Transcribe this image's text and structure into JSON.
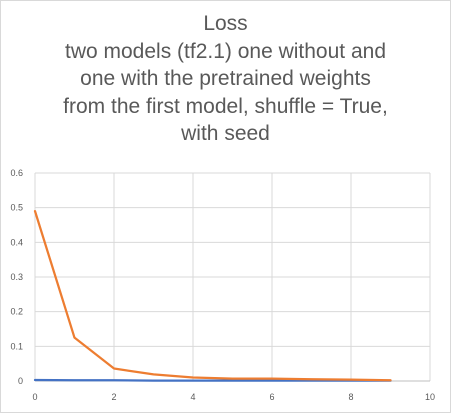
{
  "chart_data": {
    "type": "line",
    "title_lines": [
      "Loss",
      "two models (tf2.1) one without and",
      "one with the pretrained weights",
      "from the first model, shuffle = True,",
      "with seed"
    ],
    "xlabel": "",
    "ylabel": "",
    "xlim": [
      0,
      10
    ],
    "ylim": [
      0,
      0.6
    ],
    "xticks": [
      0,
      2,
      4,
      6,
      8,
      10
    ],
    "yticks": [
      0,
      0.1,
      0.2,
      0.3,
      0.4,
      0.5,
      0.6
    ],
    "grid": true,
    "legend": "none",
    "series": [
      {
        "color": "#4472C4",
        "x": [
          0,
          1,
          2,
          3,
          4,
          5,
          6,
          7,
          8,
          9
        ],
        "y": [
          0.003,
          0.002,
          0.002,
          0.001,
          0.001,
          0.001,
          0.001,
          0.001,
          0.001,
          0.001
        ]
      },
      {
        "color": "#ED7D31",
        "x": [
          0,
          1,
          2,
          3,
          4,
          5,
          6,
          7,
          8,
          9
        ],
        "y": [
          0.49,
          0.125,
          0.036,
          0.019,
          0.01,
          0.007,
          0.007,
          0.005,
          0.004,
          0.002
        ]
      }
    ]
  }
}
